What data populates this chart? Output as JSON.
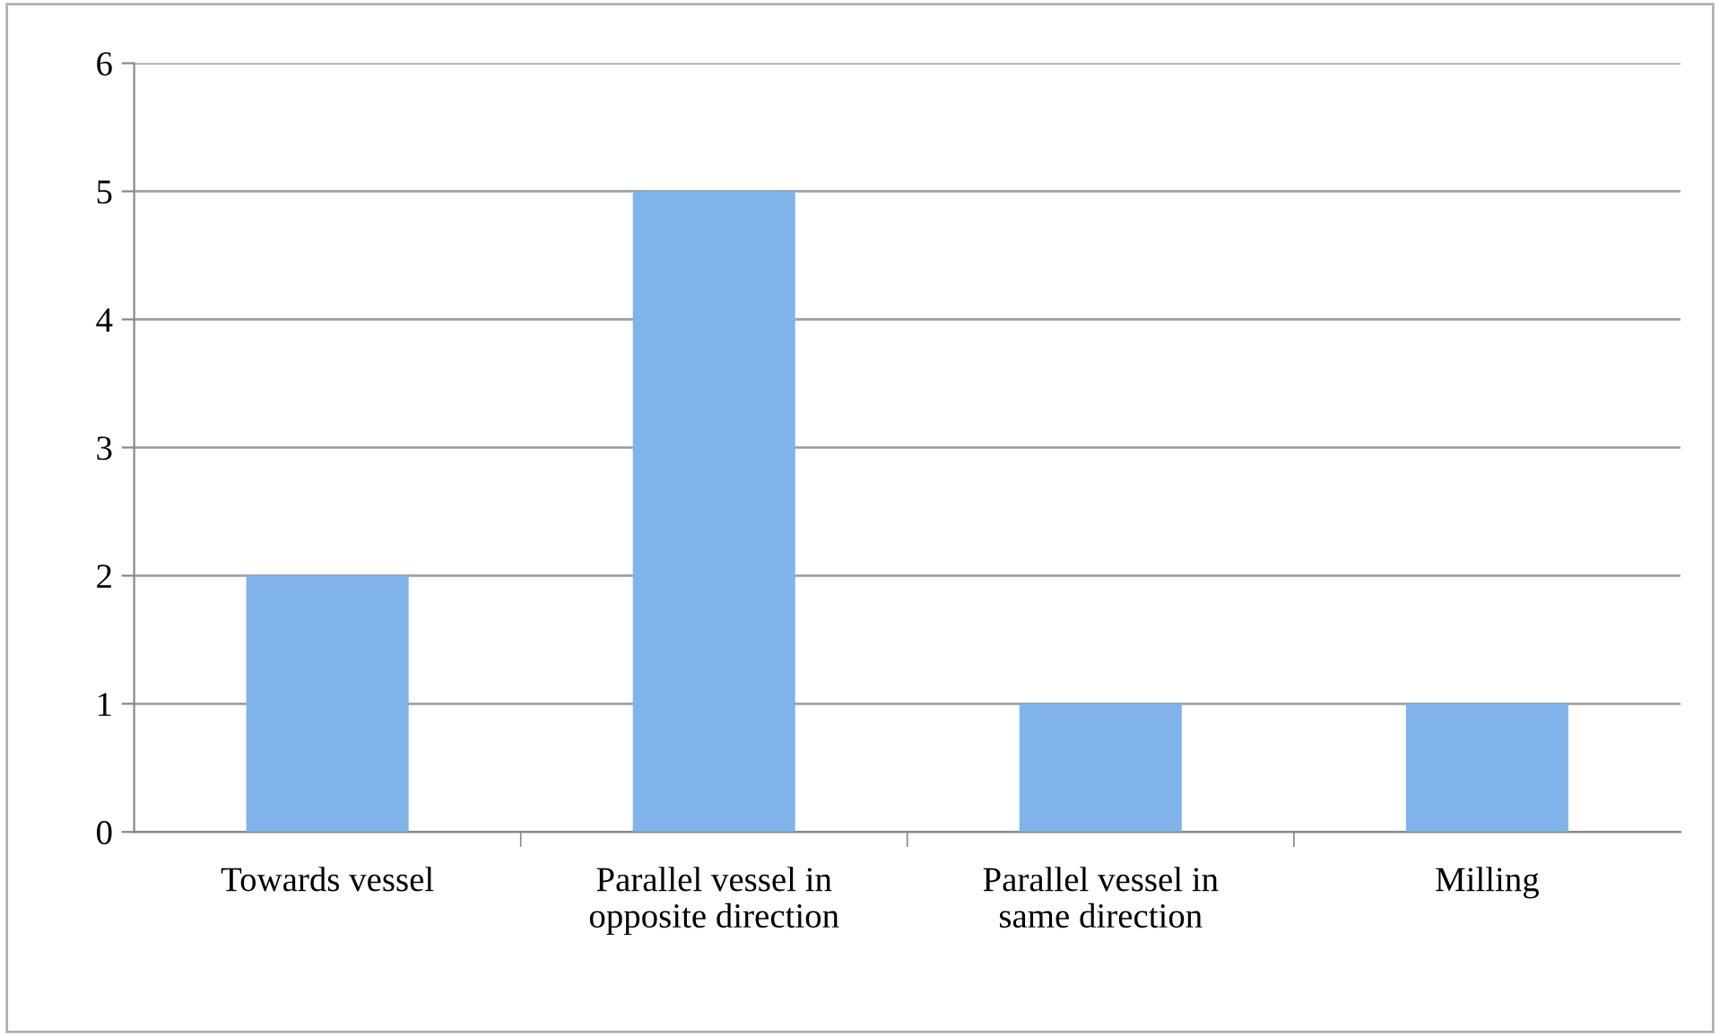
{
  "chart_data": {
    "type": "bar",
    "categories": [
      "Towards vessel",
      "Parallel vessel in\nopposite direction",
      "Parallel vessel in\nsame direction",
      "Milling"
    ],
    "values": [
      2,
      5,
      1,
      1
    ],
    "color": "#7fb3ea",
    "ylim": [
      0,
      6
    ],
    "yticks": [
      0,
      1,
      2,
      3,
      4,
      5,
      6
    ],
    "grid": "y",
    "legend": false
  }
}
